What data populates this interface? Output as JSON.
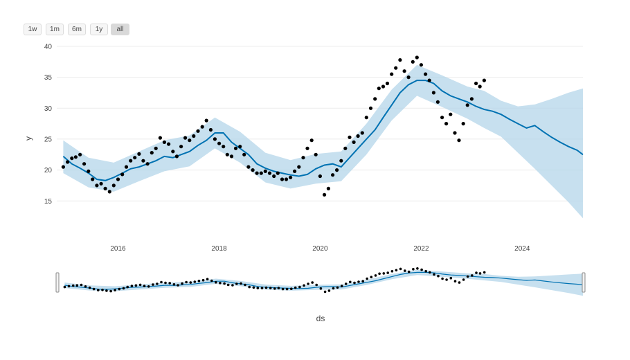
{
  "range_selector": {
    "buttons": [
      {
        "label": "1w"
      },
      {
        "label": "1m"
      },
      {
        "label": "6m"
      },
      {
        "label": "1y"
      },
      {
        "label": "all",
        "active": true
      }
    ]
  },
  "chart_data": {
    "type": "line",
    "xlabel": "ds",
    "ylabel": "y",
    "x_axis": {
      "type": "date",
      "range": [
        "2014-10-15",
        "2025-03-15"
      ],
      "tick_labels": [
        "2016",
        "2018",
        "2020",
        "2022",
        "2024"
      ]
    },
    "y_axis": {
      "range": [
        11,
        41
      ],
      "tick_labels": [
        "15",
        "20",
        "25",
        "30",
        "35",
        "40"
      ]
    },
    "grid": true,
    "has_rangeslider": true,
    "colors": {
      "forecast_line": "#0072b2",
      "uncertainty_band": "#b4d5ea",
      "actual_points": "#000000"
    },
    "series": [
      {
        "name": "",
        "role": "actual",
        "mode": "markers",
        "x": [
          "2014-12-01",
          "2015-01-01",
          "2015-02-01",
          "2015-03-01",
          "2015-04-01",
          "2015-05-01",
          "2015-06-01",
          "2015-07-01",
          "2015-08-01",
          "2015-09-01",
          "2015-10-01",
          "2015-11-01",
          "2015-12-01",
          "2016-01-01",
          "2016-02-01",
          "2016-03-01",
          "2016-04-01",
          "2016-05-01",
          "2016-06-01",
          "2016-07-01",
          "2016-08-01",
          "2016-09-01",
          "2016-10-01",
          "2016-11-01",
          "2016-12-01",
          "2017-01-01",
          "2017-02-01",
          "2017-03-01",
          "2017-04-01",
          "2017-05-01",
          "2017-06-01",
          "2017-07-01",
          "2017-08-01",
          "2017-09-01",
          "2017-10-01",
          "2017-11-01",
          "2017-12-01",
          "2018-01-01",
          "2018-02-01",
          "2018-03-01",
          "2018-04-01",
          "2018-05-01",
          "2018-06-01",
          "2018-07-01",
          "2018-08-01",
          "2018-09-01",
          "2018-10-01",
          "2018-11-01",
          "2018-12-01",
          "2019-01-01",
          "2019-02-01",
          "2019-03-01",
          "2019-04-01",
          "2019-05-01",
          "2019-06-01",
          "2019-07-01",
          "2019-08-01",
          "2019-09-01",
          "2019-10-01",
          "2019-11-01",
          "2019-12-01",
          "2020-01-01",
          "2020-02-01",
          "2020-03-01",
          "2020-04-01",
          "2020-05-01",
          "2020-06-01",
          "2020-07-01",
          "2020-08-01",
          "2020-09-01",
          "2020-10-01",
          "2020-11-01",
          "2020-12-01",
          "2021-01-01",
          "2021-02-01",
          "2021-03-01",
          "2021-04-01",
          "2021-05-01",
          "2021-06-01",
          "2021-07-01",
          "2021-08-01",
          "2021-09-01",
          "2021-10-01",
          "2021-11-01",
          "2021-12-01",
          "2022-01-01",
          "2022-02-01",
          "2022-03-01",
          "2022-04-01",
          "2022-05-01",
          "2022-06-01",
          "2022-07-01",
          "2022-08-01",
          "2022-09-01",
          "2022-10-01",
          "2022-11-01",
          "2022-12-01",
          "2023-01-01",
          "2023-02-01",
          "2023-03-01",
          "2023-04-01"
        ],
        "y": [
          20.5,
          21.3,
          21.9,
          22.1,
          22.5,
          21.0,
          19.8,
          18.5,
          17.5,
          17.8,
          17.0,
          16.5,
          17.5,
          18.5,
          19.3,
          20.5,
          21.5,
          22.0,
          22.6,
          21.5,
          21.0,
          22.8,
          23.5,
          25.2,
          24.5,
          24.2,
          23.0,
          22.2,
          23.8,
          25.2,
          24.8,
          25.5,
          26.3,
          27.0,
          28.0,
          26.5,
          25.0,
          24.3,
          23.8,
          22.5,
          22.2,
          23.5,
          23.8,
          22.5,
          20.5,
          20.0,
          19.5,
          19.5,
          19.8,
          19.5,
          19.0,
          19.5,
          18.5,
          18.5,
          18.8,
          19.8,
          20.5,
          22.0,
          23.5,
          24.8,
          22.5,
          19.0,
          16.0,
          17.0,
          19.2,
          20.0,
          21.5,
          23.5,
          25.3,
          24.5,
          25.5,
          26.0,
          28.5,
          30.0,
          31.5,
          33.2,
          33.5,
          34.0,
          35.5,
          36.5,
          37.8,
          36.0,
          35.0,
          37.5,
          38.2,
          37.0,
          35.5,
          34.5,
          32.5,
          31.0,
          28.5,
          27.5,
          29.0,
          26.0,
          24.8,
          27.5,
          30.5,
          31.5,
          34.0,
          33.5,
          34.5
        ]
      },
      {
        "name": "",
        "role": "forecast",
        "mode": "line",
        "x": [
          "2014-12-01",
          "2015-02-01",
          "2015-04-01",
          "2015-06-01",
          "2015-08-01",
          "2015-10-01",
          "2015-12-01",
          "2016-02-01",
          "2016-04-01",
          "2016-06-01",
          "2016-08-01",
          "2016-10-01",
          "2016-12-01",
          "2017-02-01",
          "2017-04-01",
          "2017-06-01",
          "2017-08-01",
          "2017-10-01",
          "2017-12-01",
          "2018-02-01",
          "2018-04-01",
          "2018-06-01",
          "2018-08-01",
          "2018-10-01",
          "2018-12-01",
          "2019-02-01",
          "2019-04-01",
          "2019-06-01",
          "2019-08-01",
          "2019-10-01",
          "2019-12-01",
          "2020-02-01",
          "2020-04-01",
          "2020-06-01",
          "2020-08-01",
          "2020-10-01",
          "2020-12-01",
          "2021-02-01",
          "2021-04-01",
          "2021-06-01",
          "2021-08-01",
          "2021-10-01",
          "2021-12-01",
          "2022-02-01",
          "2022-04-01",
          "2022-06-01",
          "2022-08-01",
          "2022-10-01",
          "2022-12-01",
          "2023-02-01",
          "2023-04-01",
          "2023-06-01",
          "2023-08-01",
          "2023-10-01",
          "2023-12-01",
          "2024-02-01",
          "2024-04-01",
          "2024-06-01",
          "2024-08-01",
          "2024-10-01",
          "2024-12-01",
          "2025-02-01",
          "2025-03-15"
        ],
        "y": [
          22.2,
          21.0,
          20.3,
          19.5,
          18.5,
          18.3,
          18.8,
          19.5,
          20.2,
          20.5,
          21.0,
          21.5,
          22.2,
          22.0,
          22.5,
          23.0,
          24.0,
          24.8,
          26.0,
          26.0,
          24.5,
          23.5,
          22.5,
          21.0,
          20.3,
          19.8,
          19.5,
          19.2,
          19.0,
          19.3,
          20.2,
          20.8,
          21.0,
          20.5,
          22.0,
          23.5,
          25.0,
          26.5,
          28.5,
          30.5,
          32.5,
          33.8,
          34.5,
          34.5,
          34.0,
          32.8,
          32.0,
          31.5,
          31.0,
          30.3,
          29.8,
          29.5,
          29.0,
          28.2,
          27.5,
          26.8,
          27.2,
          26.2,
          25.3,
          24.5,
          23.8,
          23.2,
          22.5
        ]
      },
      {
        "name": "",
        "role": "uncertainty",
        "mode": "band",
        "x": [
          "2014-12-01",
          "2015-06-01",
          "2015-12-01",
          "2016-06-01",
          "2016-12-01",
          "2017-06-01",
          "2017-12-01",
          "2018-06-01",
          "2018-12-01",
          "2019-06-01",
          "2019-12-01",
          "2020-06-01",
          "2020-12-01",
          "2021-06-01",
          "2021-12-01",
          "2022-06-01",
          "2022-12-01",
          "2023-04-01",
          "2023-08-01",
          "2023-12-01",
          "2024-04-01",
          "2024-08-01",
          "2024-12-01",
          "2025-03-15"
        ],
        "lower": [
          19.5,
          17.2,
          16.5,
          18.2,
          19.8,
          20.6,
          23.5,
          21.2,
          18.0,
          17.0,
          17.8,
          18.2,
          22.5,
          28.0,
          32.0,
          30.2,
          28.3,
          26.8,
          25.4,
          22.8,
          20.2,
          17.5,
          14.8,
          12.2
        ],
        "upper": [
          24.8,
          22.0,
          21.2,
          23.0,
          24.8,
          25.6,
          28.5,
          26.2,
          22.8,
          21.6,
          22.6,
          23.0,
          27.5,
          33.0,
          37.0,
          35.3,
          33.5,
          32.8,
          31.2,
          30.3,
          30.6,
          31.5,
          32.5,
          33.2
        ]
      }
    ]
  }
}
